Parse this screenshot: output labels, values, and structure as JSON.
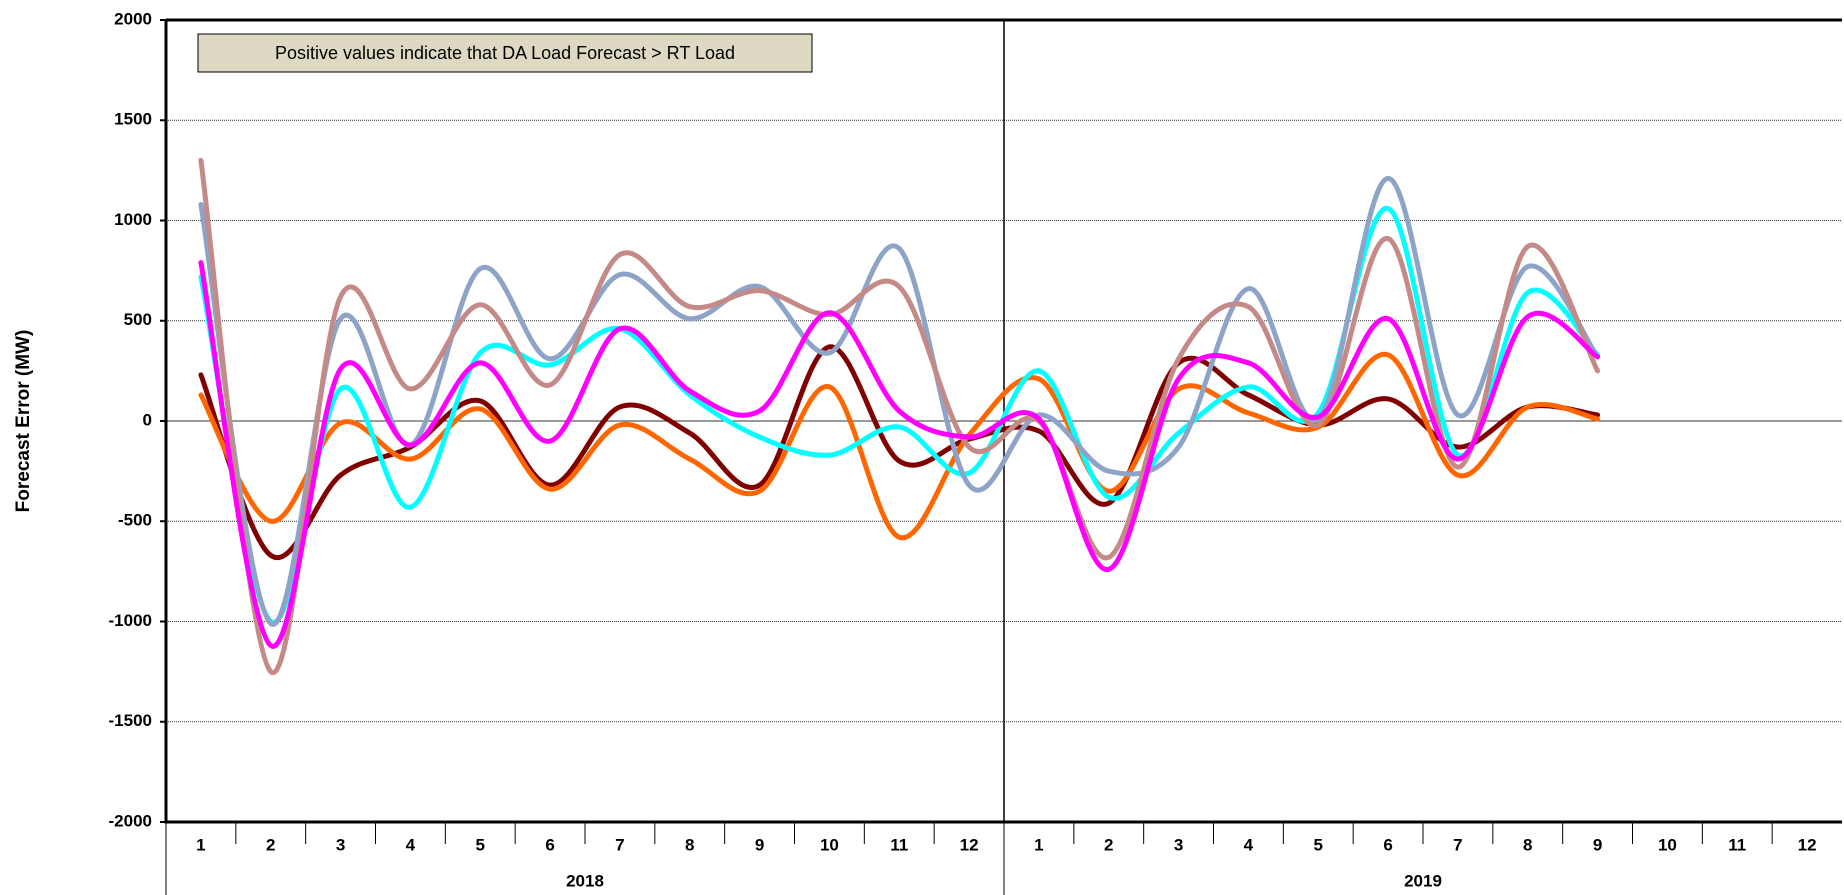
{
  "chart_data": {
    "type": "line",
    "y_label": "Forecast Error (MW)",
    "annotation": "Positive values indicate that DA Load Forecast > RT Load",
    "categories": [
      "1",
      "2",
      "3",
      "4",
      "5",
      "6",
      "7",
      "8",
      "9",
      "10",
      "11",
      "12",
      "1",
      "2",
      "3",
      "4",
      "5",
      "6",
      "7",
      "8",
      "9",
      "10",
      "11",
      "12"
    ],
    "x_groups": [
      "2018",
      "2019"
    ],
    "ylim": [
      -2000,
      2000
    ],
    "yticks": [
      -2000,
      -1500,
      -1000,
      -500,
      0,
      500,
      1000,
      1500,
      2000
    ],
    "grid": true,
    "smooth": true,
    "series": [
      {
        "color": "#800000",
        "values": [
          230,
          -670,
          -270,
          -130,
          100,
          -320,
          70,
          -60,
          -320,
          370,
          -200,
          -90,
          -50,
          -410,
          290,
          130,
          -20,
          110,
          -130,
          70,
          30,
          null,
          null,
          null
        ]
      },
      {
        "color": "#ff6600",
        "values": [
          130,
          -500,
          -10,
          -190,
          60,
          -340,
          -20,
          -190,
          -350,
          170,
          -580,
          -70,
          210,
          -350,
          160,
          40,
          -30,
          330,
          -270,
          70,
          10,
          null,
          null,
          null
        ]
      },
      {
        "color": "#00ffff",
        "values": [
          720,
          -1000,
          160,
          -430,
          340,
          280,
          460,
          130,
          -80,
          -170,
          -30,
          -260,
          250,
          -380,
          -60,
          170,
          40,
          1060,
          -170,
          640,
          330,
          null,
          null,
          null
        ]
      },
      {
        "color": "#8da3c8",
        "values": [
          1080,
          -1010,
          510,
          -120,
          760,
          310,
          730,
          510,
          670,
          340,
          860,
          -320,
          30,
          -250,
          -130,
          660,
          10,
          1210,
          30,
          770,
          320,
          null,
          null,
          null
        ]
      },
      {
        "color": "#c48a88",
        "values": [
          1300,
          -1250,
          620,
          160,
          580,
          180,
          830,
          570,
          650,
          530,
          670,
          -130,
          0,
          -680,
          310,
          570,
          -20,
          910,
          -230,
          870,
          250,
          null,
          null,
          null
        ]
      },
      {
        "color": "#ff00ff",
        "values": [
          790,
          -1120,
          260,
          -120,
          290,
          -100,
          460,
          150,
          50,
          540,
          50,
          -80,
          10,
          -740,
          210,
          290,
          20,
          510,
          -190,
          520,
          320,
          null,
          null,
          null
        ]
      }
    ]
  }
}
